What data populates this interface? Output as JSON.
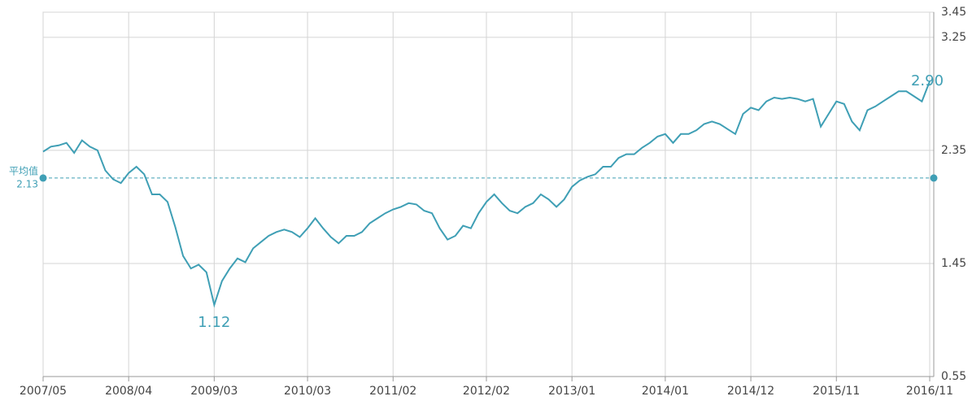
{
  "chart_data": {
    "type": "line",
    "x": [
      "2007/05",
      "2007/06",
      "2007/07",
      "2007/08",
      "2007/09",
      "2007/10",
      "2007/11",
      "2007/12",
      "2008/01",
      "2008/02",
      "2008/03",
      "2008/04",
      "2008/05",
      "2008/06",
      "2008/07",
      "2008/08",
      "2008/09",
      "2008/10",
      "2008/11",
      "2008/12",
      "2009/01",
      "2009/02",
      "2009/03",
      "2009/04",
      "2009/05",
      "2009/06",
      "2009/07",
      "2009/08",
      "2009/09",
      "2009/10",
      "2009/11",
      "2009/12",
      "2010/01",
      "2010/02",
      "2010/03",
      "2010/04",
      "2010/05",
      "2010/06",
      "2010/07",
      "2010/08",
      "2010/09",
      "2010/10",
      "2010/11",
      "2010/12",
      "2011/01",
      "2011/02",
      "2011/03",
      "2011/04",
      "2011/05",
      "2011/06",
      "2011/07",
      "2011/08",
      "2011/09",
      "2011/10",
      "2011/11",
      "2011/12",
      "2012/01",
      "2012/02",
      "2012/03",
      "2012/04",
      "2012/05",
      "2012/06",
      "2012/07",
      "2012/08",
      "2012/09",
      "2012/10",
      "2012/11",
      "2012/12",
      "2013/01",
      "2013/02",
      "2013/03",
      "2013/04",
      "2013/05",
      "2013/06",
      "2013/07",
      "2013/08",
      "2013/09",
      "2013/10",
      "2013/11",
      "2013/12",
      "2014/01",
      "2014/02",
      "2014/03",
      "2014/04",
      "2014/05",
      "2014/06",
      "2014/07",
      "2014/08",
      "2014/09",
      "2014/10",
      "2014/11",
      "2014/12",
      "2015/01",
      "2015/02",
      "2015/03",
      "2015/04",
      "2015/05",
      "2015/06",
      "2015/07",
      "2015/08",
      "2015/09",
      "2015/10",
      "2015/11",
      "2015/12",
      "2016/01",
      "2016/02",
      "2016/03",
      "2016/04",
      "2016/05",
      "2016/06",
      "2016/07",
      "2016/08",
      "2016/09",
      "2016/10",
      "2016/11"
    ],
    "series": [
      {
        "color": "#3f9fb5",
        "values": [
          2.34,
          2.38,
          2.39,
          2.41,
          2.33,
          2.43,
          2.38,
          2.35,
          2.19,
          2.12,
          2.09,
          2.17,
          2.22,
          2.16,
          2.0,
          2.0,
          1.94,
          1.74,
          1.51,
          1.41,
          1.44,
          1.38,
          1.12,
          1.31,
          1.41,
          1.49,
          1.46,
          1.57,
          1.62,
          1.67,
          1.7,
          1.72,
          1.7,
          1.66,
          1.73,
          1.81,
          1.73,
          1.66,
          1.61,
          1.67,
          1.67,
          1.7,
          1.77,
          1.81,
          1.85,
          1.88,
          1.9,
          1.93,
          1.92,
          1.87,
          1.85,
          1.73,
          1.64,
          1.67,
          1.75,
          1.73,
          1.85,
          1.94,
          2.0,
          1.93,
          1.87,
          1.85,
          1.9,
          1.93,
          2.0,
          1.96,
          1.9,
          1.96,
          2.06,
          2.11,
          2.14,
          2.16,
          2.22,
          2.22,
          2.29,
          2.32,
          2.32,
          2.37,
          2.41,
          2.46,
          2.48,
          2.41,
          2.48,
          2.48,
          2.51,
          2.56,
          2.58,
          2.56,
          2.52,
          2.48,
          2.64,
          2.69,
          2.67,
          2.74,
          2.77,
          2.76,
          2.77,
          2.76,
          2.74,
          2.76,
          2.54,
          2.64,
          2.74,
          2.72,
          2.58,
          2.51,
          2.67,
          2.7,
          2.74,
          2.78,
          2.82,
          2.82,
          2.78,
          2.74,
          2.9
        ]
      }
    ],
    "xticks": [
      "2007/05",
      "2008/04",
      "2009/03",
      "2010/03",
      "2011/02",
      "2012/02",
      "2013/01",
      "2014/01",
      "2014/12",
      "2015/11",
      "2016/11"
    ],
    "ylim": [
      0.55,
      3.45
    ],
    "yticks": [
      0.55,
      1.45,
      2.35,
      3.25,
      3.45
    ],
    "grid": true,
    "average": {
      "label": "平均值",
      "value": 2.13
    },
    "annotations": [
      {
        "text": "1.12",
        "x": "2009/03",
        "y": 1.12
      },
      {
        "text": "2.90",
        "x": "2016/11",
        "y": 2.9
      }
    ]
  }
}
